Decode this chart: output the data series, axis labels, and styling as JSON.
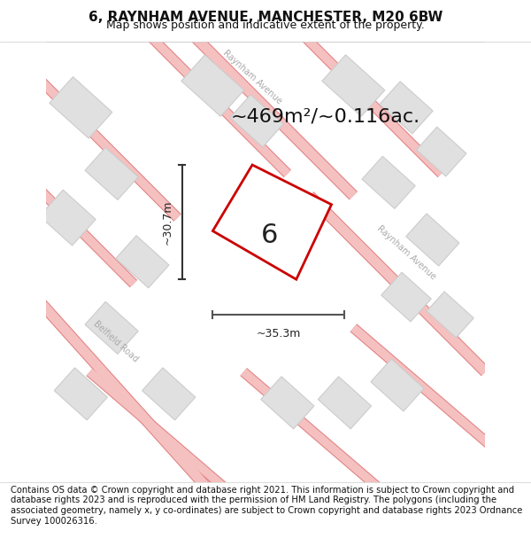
{
  "title": "6, RAYNHAM AVENUE, MANCHESTER, M20 6BW",
  "subtitle": "Map shows position and indicative extent of the property.",
  "area_text": "~469m²/~0.116ac.",
  "label_number": "6",
  "dim_height": "~30.7m",
  "dim_width": "~35.3m",
  "footer": "Contains OS data © Crown copyright and database right 2021. This information is subject to Crown copyright and database rights 2023 and is reproduced with the permission of HM Land Registry. The polygons (including the associated geometry, namely x, y co-ordinates) are subject to Crown copyright and database rights 2023 Ordnance Survey 100026316.",
  "bg_color": "#f5f5f5",
  "map_bg": "#efefef",
  "road_color": "#f5c0c0",
  "road_line_color": "#e08080",
  "building_color": "#e0e0e0",
  "building_edge": "#cccccc",
  "plot_color": "#ffffff",
  "plot_edge": "#cc0000",
  "street_label_color": "#aaaaaa",
  "dim_color": "#333333",
  "title_fontsize": 11,
  "subtitle_fontsize": 9,
  "area_fontsize": 18,
  "label_fontsize": 22,
  "footer_fontsize": 7.2
}
